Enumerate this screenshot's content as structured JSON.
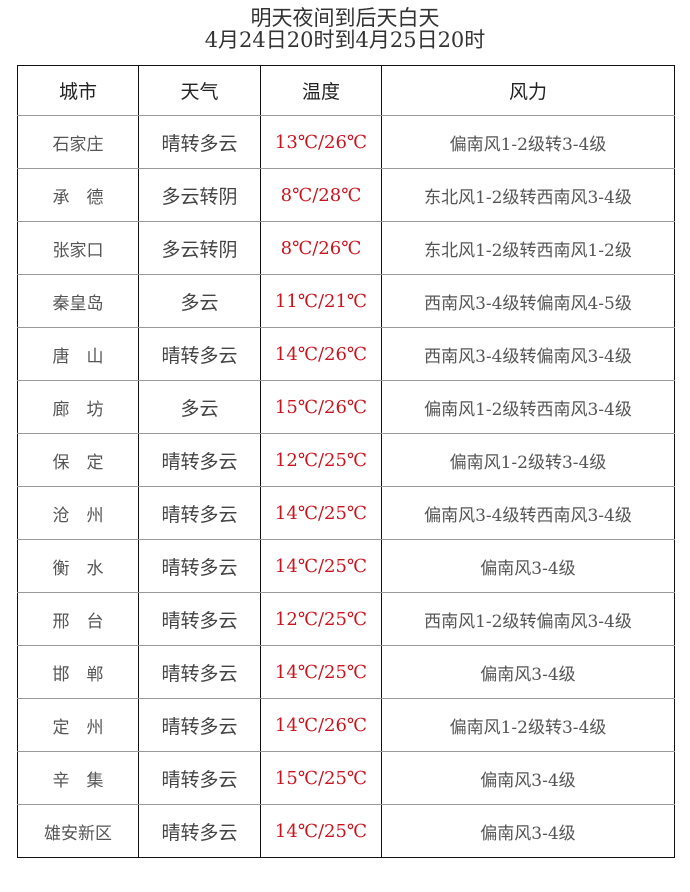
{
  "title": "明天夜间到后天白天",
  "subtitle": "4月24日20时到4月25日20时",
  "colors": {
    "temperature": "#c8141e"
  },
  "headers": [
    "城市",
    "天气",
    "温度",
    "风力"
  ],
  "rows": [
    [
      "石家庄",
      "晴转多云",
      "13℃/26℃",
      "偏南风1-2级转3-4级"
    ],
    [
      "承　德",
      "多云转阴",
      "8℃/28℃",
      "东北风1-2级转西南风3-4级"
    ],
    [
      "张家口",
      "多云转阴",
      "8℃/26℃",
      "东北风1-2级转西南风1-2级"
    ],
    [
      "秦皇岛",
      "多云",
      "11℃/21℃",
      "西南风3-4级转偏南风4-5级"
    ],
    [
      "唐　山",
      "晴转多云",
      "14℃/26℃",
      "西南风3-4级转偏南风3-4级"
    ],
    [
      "廊　坊",
      "多云",
      "15℃/26℃",
      "偏南风1-2级转西南风3-4级"
    ],
    [
      "保　定",
      "晴转多云",
      "12℃/25℃",
      "偏南风1-2级转3-4级"
    ],
    [
      "沧　州",
      "晴转多云",
      "14℃/25℃",
      "偏南风3-4级转西南风3-4级"
    ],
    [
      "衡　水",
      "晴转多云",
      "14℃/25℃",
      "偏南风3-4级"
    ],
    [
      "邢　台",
      "晴转多云",
      "12℃/25℃",
      "西南风1-2级转偏南风3-4级"
    ],
    [
      "邯　郸",
      "晴转多云",
      "14℃/25℃",
      "偏南风3-4级"
    ],
    [
      "定　州",
      "晴转多云",
      "14℃/26℃",
      "偏南风1-2级转3-4级"
    ],
    [
      "辛　集",
      "晴转多云",
      "15℃/25℃",
      "偏南风3-4级"
    ],
    [
      "雄安新区",
      "晴转多云",
      "14℃/25℃",
      "偏南风3-4级"
    ]
  ]
}
